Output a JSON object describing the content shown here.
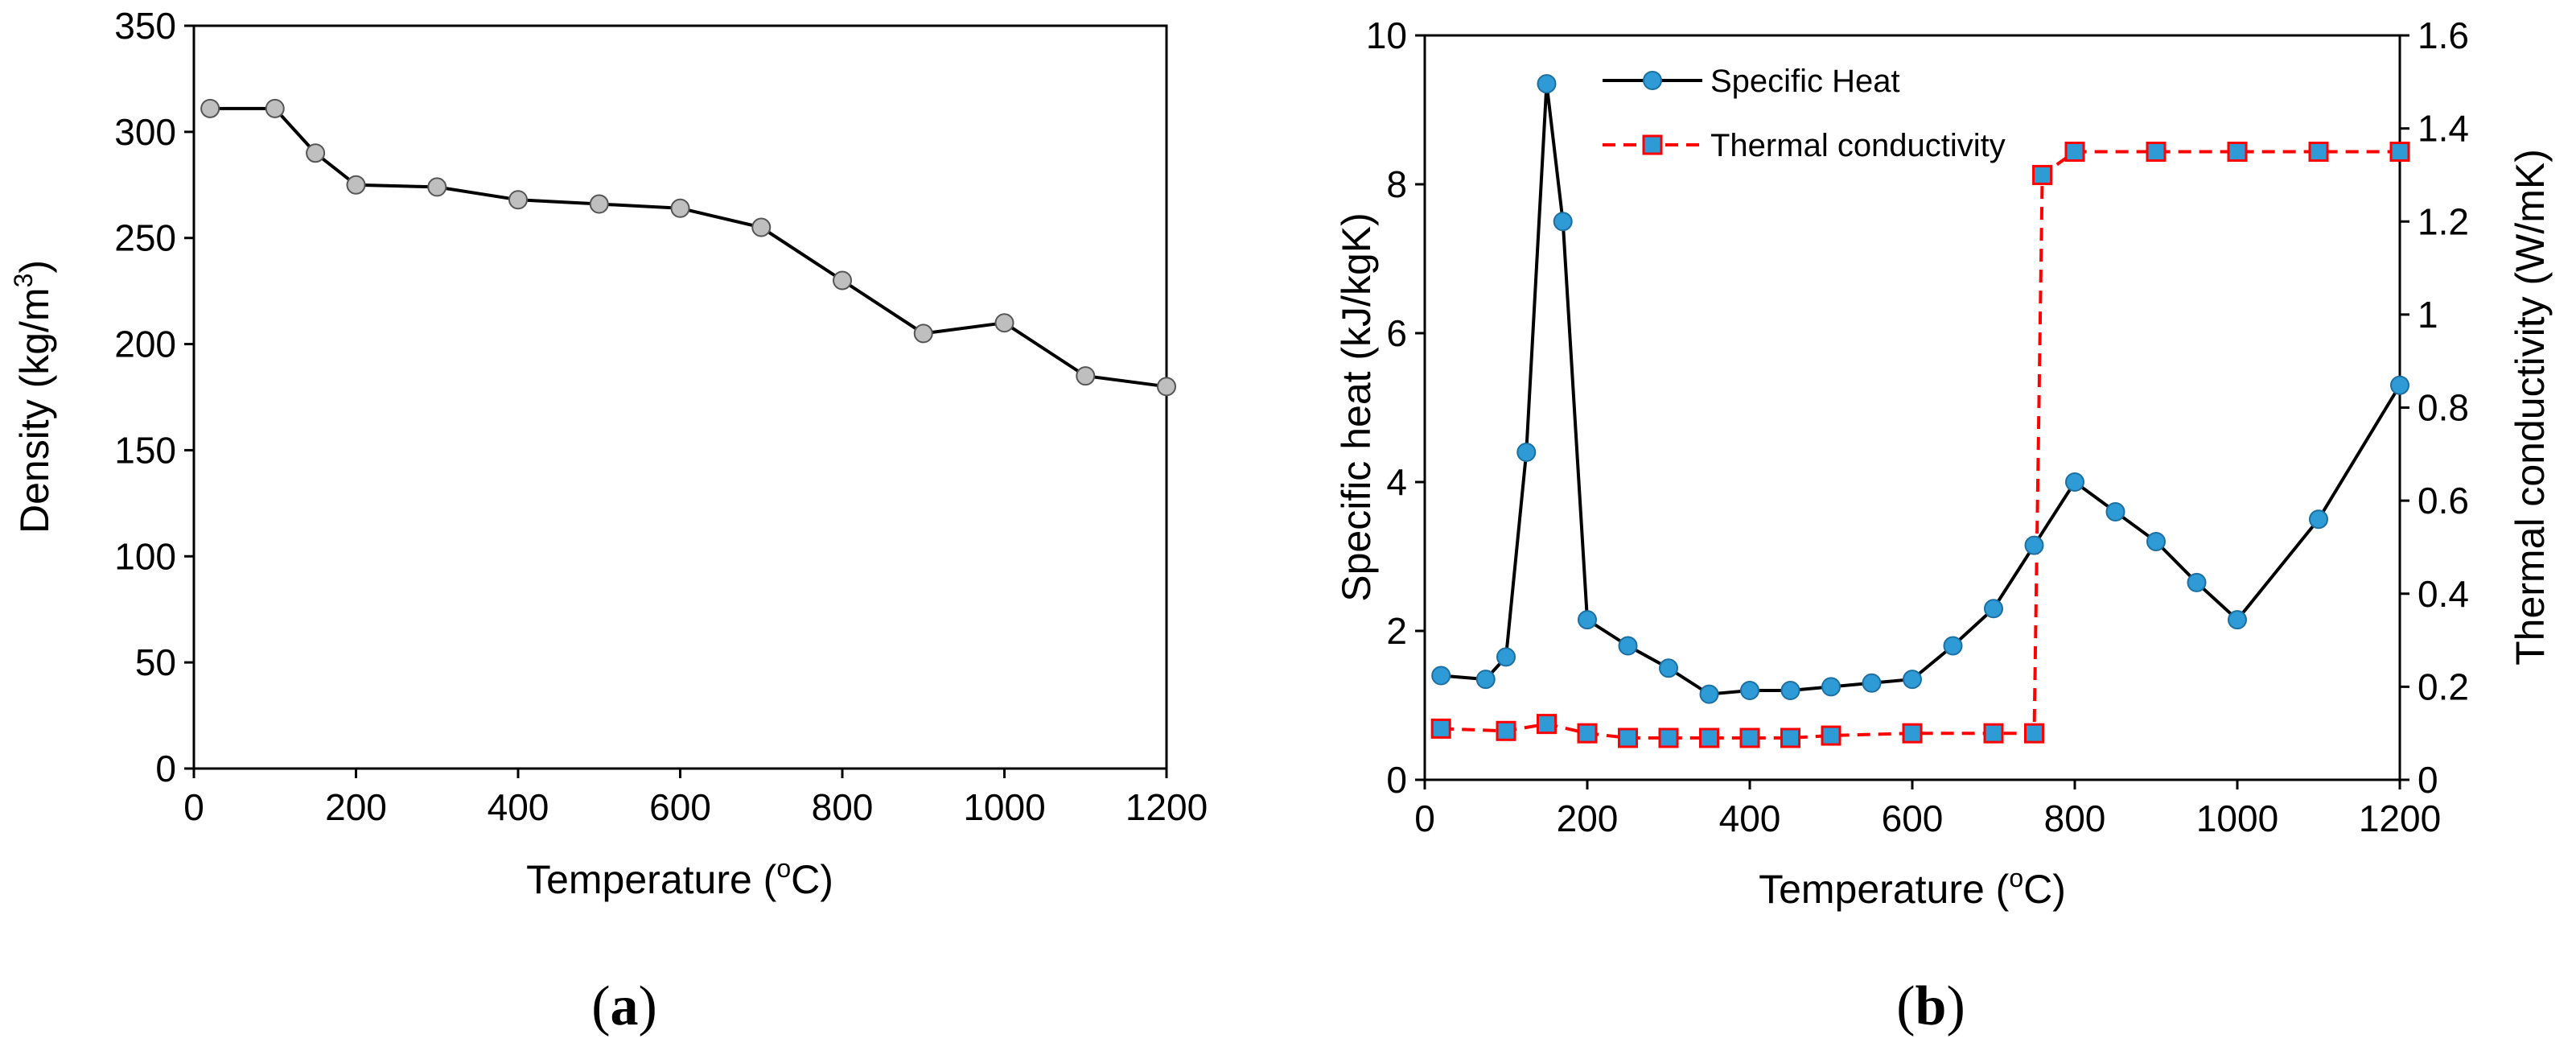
{
  "chart_data": [
    {
      "type": "line",
      "panel_label": "a",
      "xlabel": "Temperature (",
      "xlabel_sup": "o",
      "xlabel_end": "C)",
      "ylabel": "Density (kg/m",
      "ylabel_sup": "3",
      "ylabel_end": ")",
      "xlim": [
        0,
        1200
      ],
      "ylim": [
        0,
        350
      ],
      "xticks": [
        0,
        200,
        400,
        600,
        800,
        1000,
        1200
      ],
      "yticks": [
        0,
        50,
        100,
        150,
        200,
        250,
        300,
        350
      ],
      "grid": false,
      "series": [
        {
          "name": "Density",
          "color": "#bfbfbf",
          "x": [
            20,
            100,
            150,
            200,
            300,
            400,
            500,
            600,
            700,
            800,
            900,
            1000,
            1100,
            1200
          ],
          "y": [
            311,
            311,
            290,
            275,
            274,
            268,
            266,
            264,
            255,
            230,
            205,
            210,
            185,
            180
          ]
        }
      ]
    },
    {
      "type": "line",
      "panel_label": "b",
      "xlabel": "Temperature (",
      "xlabel_sup": "o",
      "xlabel_end": "C)",
      "ylabel": "Specific heat (kJ/kgK)",
      "ylabel_right": "Thermal conductivity (W/mK)",
      "xlim": [
        0,
        1200
      ],
      "ylim": [
        0,
        10
      ],
      "ylim_right": [
        0,
        1.6
      ],
      "xticks": [
        0,
        200,
        400,
        600,
        800,
        1000,
        1200
      ],
      "yticks": [
        0,
        2,
        4,
        6,
        8,
        10
      ],
      "yticks_right": [
        "0",
        "0.2",
        "0.4",
        "0.6",
        "0.8",
        "1",
        "1.2",
        "1.4",
        "1.6"
      ],
      "grid": false,
      "legend_position": "top-left",
      "series": [
        {
          "name": "Specific Heat",
          "axis": "left",
          "marker": "circle",
          "line_style": "solid",
          "line_color": "#000000",
          "marker_color": "#2e9bd6",
          "x": [
            20,
            75,
            100,
            125,
            150,
            170,
            200,
            250,
            300,
            350,
            400,
            450,
            500,
            550,
            600,
            650,
            700,
            750,
            800,
            850,
            900,
            950,
            1000,
            1100,
            1200
          ],
          "y": [
            1.4,
            1.35,
            1.65,
            4.4,
            9.35,
            7.5,
            2.15,
            1.8,
            1.5,
            1.15,
            1.2,
            1.2,
            1.25,
            1.3,
            1.35,
            1.8,
            2.3,
            3.15,
            4.0,
            3.6,
            3.2,
            2.65,
            2.15,
            3.5,
            5.3
          ]
        },
        {
          "name": "Thermal conductivity",
          "axis": "right",
          "marker": "square",
          "line_style": "dashed",
          "line_color": "#ff0000",
          "marker_color": "#2e9bd6",
          "x": [
            20,
            100,
            150,
            200,
            250,
            300,
            350,
            400,
            450,
            500,
            600,
            700,
            750,
            760,
            800,
            900,
            1000,
            1100,
            1200
          ],
          "y": [
            0.11,
            0.105,
            0.12,
            0.1,
            0.09,
            0.09,
            0.09,
            0.09,
            0.09,
            0.095,
            0.1,
            0.1,
            0.1,
            1.3,
            1.35,
            1.35,
            1.35,
            1.35,
            1.35
          ]
        }
      ]
    }
  ]
}
